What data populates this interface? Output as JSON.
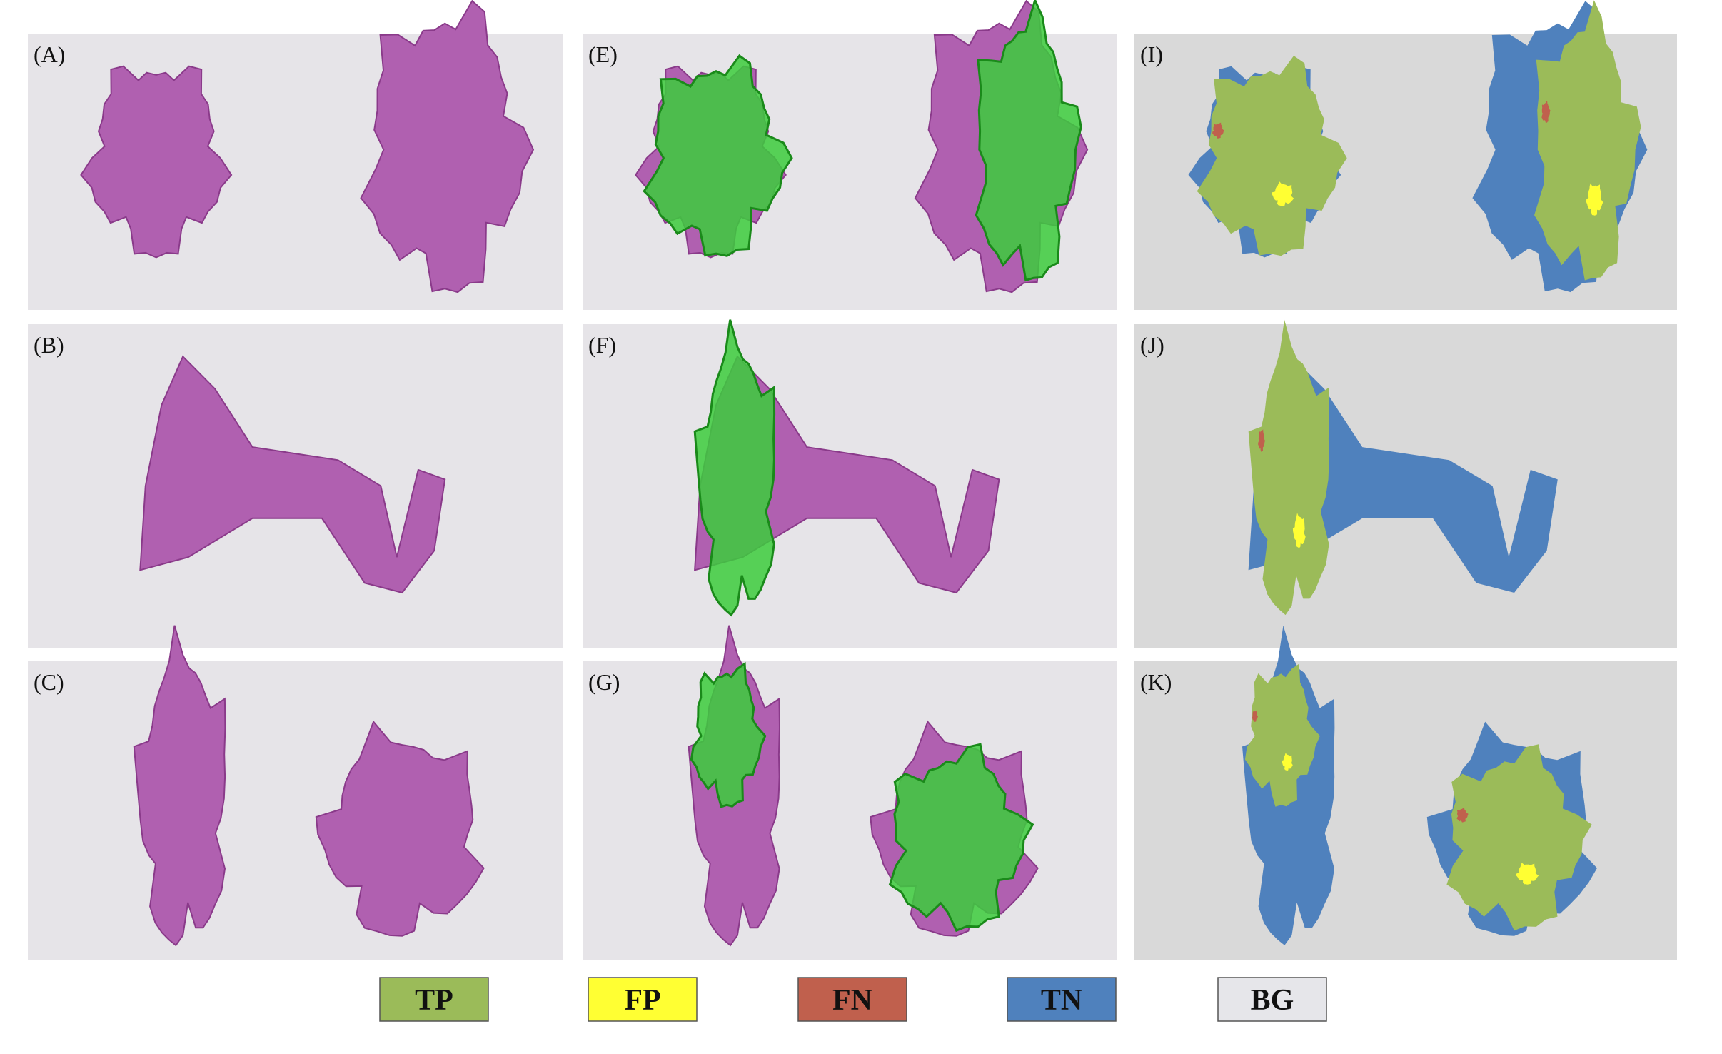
{
  "panels": [
    {
      "label": "(A)"
    },
    {
      "label": "(B)"
    },
    {
      "label": "(C)"
    },
    {
      "label": "(E)"
    },
    {
      "label": "(F)"
    },
    {
      "label": "(G)"
    },
    {
      "label": "(I)"
    },
    {
      "label": "(J)"
    },
    {
      "label": "(K)"
    }
  ],
  "legend": [
    {
      "label": "TP",
      "color": "#9bbb59"
    },
    {
      "label": "FP",
      "color": "#ffff33"
    },
    {
      "label": "FN",
      "color": "#c0604d"
    },
    {
      "label": "TN",
      "color": "#4f81bd"
    },
    {
      "label": "BG",
      "color": "#e6e6ea"
    }
  ]
}
